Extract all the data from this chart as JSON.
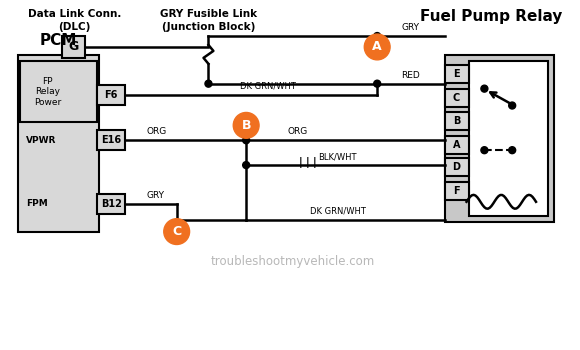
{
  "bg_color": "#ffffff",
  "line_color": "#000000",
  "box_fill": "#d8d8d8",
  "orange": "#f07020",
  "watermark": "troubleshootmyvehicle.com",
  "pcm_label": "PCM",
  "fp_label": "FP\nRelay\nPower",
  "vpwr_label": "VPWR",
  "fpm_label": "FPM",
  "f6_label": "F6",
  "e16_label": "E16",
  "b12_label": "B12",
  "g_label": "G",
  "dlc_title": "Data Link Conn.\n(DLC)",
  "fuse_title": "GRY Fusible Link\n(Junction Block)",
  "relay_title": "Fuel Pump Relay",
  "wire_labels": {
    "gry_top": "GRY",
    "red": "RED",
    "org_mid": "ORG",
    "blk_wht": "BLK/WHT",
    "dk_grn_wht_top": "DK GRN/WHT",
    "dk_grn_wht_bot": "DK GRN/WHT",
    "org_pcm": "ORG",
    "gry_pcm": "GRY"
  },
  "pin_labels": [
    "E",
    "C",
    "B",
    "A",
    "D",
    "F"
  ],
  "circle_labels": [
    "A",
    "B",
    "C"
  ]
}
